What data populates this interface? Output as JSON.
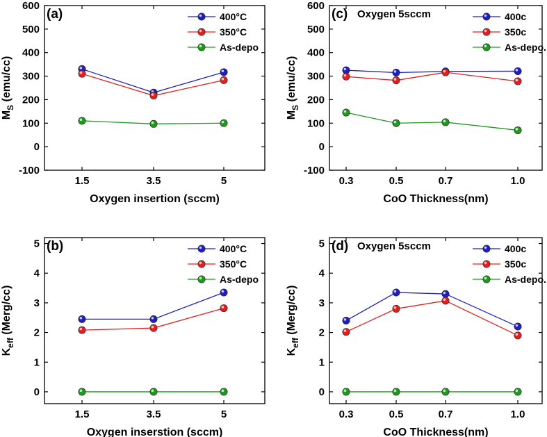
{
  "chart_data": [
    {
      "type": "line",
      "panel": "(a)",
      "annotation": "",
      "xlabel": "Oxygen insertion (sccm)",
      "ylabel_main": "M",
      "ylabel_sub": "S",
      "ylabel_rest": " (emu/cc)",
      "categories": [
        "1.5",
        "3.5",
        "5"
      ],
      "ylim": [
        -100,
        600
      ],
      "yticks": [
        "-100",
        "0",
        "100",
        "200",
        "300",
        "400",
        "500",
        "600"
      ],
      "ytick_values": [
        -100,
        0,
        100,
        200,
        300,
        400,
        500,
        600
      ],
      "series": [
        {
          "name": "400°C",
          "color": "#1f1fbf",
          "values": [
            330,
            230,
            317
          ]
        },
        {
          "name": "350°C",
          "color": "#e02020",
          "values": [
            310,
            217,
            283
          ]
        },
        {
          "name": "As-depo",
          "color": "#1f9a1f",
          "values": [
            110,
            97,
            100
          ]
        }
      ]
    },
    {
      "type": "line",
      "panel": "(c)",
      "annotation": "Oxygen 5sccm",
      "xlabel": "CoO Thickness(nm)",
      "ylabel_main": "M",
      "ylabel_sub": "S",
      "ylabel_rest": " (emu/cc)",
      "categories": [
        "0.3",
        "0.5",
        "0.7",
        "1.0"
      ],
      "ylim": [
        -100,
        600
      ],
      "yticks": [
        "-100",
        "0",
        "100",
        "200",
        "300",
        "400",
        "500",
        "600"
      ],
      "ytick_values": [
        -100,
        0,
        100,
        200,
        300,
        400,
        500,
        600
      ],
      "series": [
        {
          "name": "400c",
          "color": "#1f1fbf",
          "values": [
            325,
            315,
            320,
            321
          ]
        },
        {
          "name": "350c",
          "color": "#e02020",
          "values": [
            298,
            282,
            316,
            278
          ]
        },
        {
          "name": "As-depo.",
          "color": "#1f9a1f",
          "values": [
            145,
            100,
            104,
            70
          ]
        }
      ]
    },
    {
      "type": "line",
      "panel": "(b)",
      "annotation": "",
      "xlabel": "Oxygen inserstion (sccm)",
      "ylabel_main": "K",
      "ylabel_sub": "eff",
      "ylabel_rest": " (Merg/cc)",
      "categories": [
        "1.5",
        "3.5",
        "5"
      ],
      "ylim": [
        -0.4,
        5.2
      ],
      "yticks": [
        "0",
        "1",
        "2",
        "3",
        "4",
        "5"
      ],
      "ytick_values": [
        0,
        1,
        2,
        3,
        4,
        5
      ],
      "series": [
        {
          "name": "400°C",
          "color": "#1f1fbf",
          "values": [
            2.45,
            2.45,
            3.35
          ]
        },
        {
          "name": "350°C",
          "color": "#e02020",
          "values": [
            2.08,
            2.15,
            2.82
          ]
        },
        {
          "name": "As-depo",
          "color": "#1f9a1f",
          "values": [
            0,
            0,
            0
          ]
        }
      ]
    },
    {
      "type": "line",
      "panel": "(d)",
      "annotation": "Oxygen 5sccm",
      "xlabel": "CoO Thickness(nm)",
      "ylabel_main": "K",
      "ylabel_sub": "eff",
      "ylabel_rest": " (Merg/cc)",
      "categories": [
        "0.3",
        "0.5",
        "0.7",
        "1.0"
      ],
      "ylim": [
        -0.4,
        5.2
      ],
      "yticks": [
        "0",
        "1",
        "2",
        "3",
        "4",
        "5"
      ],
      "ytick_values": [
        0,
        1,
        2,
        3,
        4,
        5
      ],
      "series": [
        {
          "name": "400c",
          "color": "#1f1fbf",
          "values": [
            2.4,
            3.35,
            3.3,
            2.2
          ]
        },
        {
          "name": "350c",
          "color": "#e02020",
          "values": [
            2.02,
            2.8,
            3.07,
            1.9
          ]
        },
        {
          "name": "As-depo.",
          "color": "#1f9a1f",
          "values": [
            0,
            0,
            0,
            0
          ]
        }
      ]
    }
  ]
}
